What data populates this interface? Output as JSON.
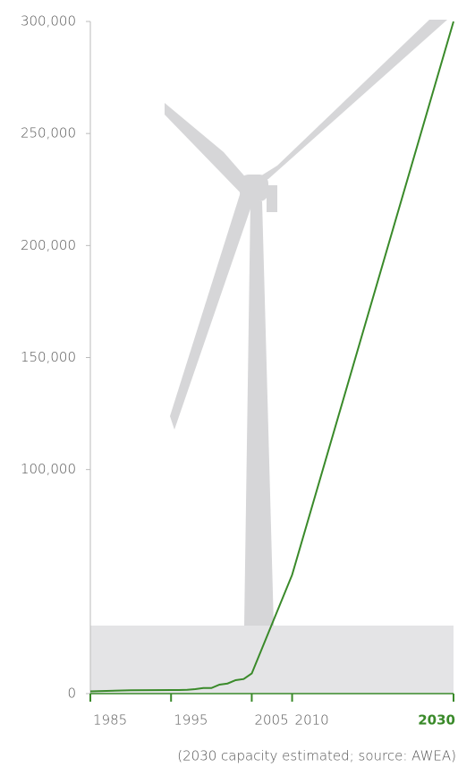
{
  "chart_data": {
    "type": "line",
    "x": [
      1985,
      1990,
      1995,
      1996,
      1997,
      1998,
      1999,
      2000,
      2001,
      2002,
      2003,
      2004,
      2005,
      2010,
      2030
    ],
    "series": [
      {
        "color": "#3a8a2a",
        "values": [
          1000,
          1500,
          1600,
          1600,
          1700,
          2000,
          2500,
          2500,
          4000,
          4500,
          6000,
          6500,
          9000,
          53000,
          300000
        ]
      }
    ],
    "xlim": [
      1985,
      2030
    ],
    "xticks": [
      1985,
      1995,
      2005,
      2010,
      2030
    ],
    "ylim": [
      0,
      300000
    ],
    "yticks": [
      0,
      {
        "value": 100000,
        "label": "100,000"
      },
      {
        "value": 150000,
        "label": "150,000"
      },
      {
        "value": 200000,
        "label": "200,000"
      },
      {
        "value": 250000,
        "label": "250,000"
      },
      {
        "value": 300000,
        "label": "300,000"
      }
    ],
    "note": "(2030 capacity estimated; source: AWEA)"
  }
}
